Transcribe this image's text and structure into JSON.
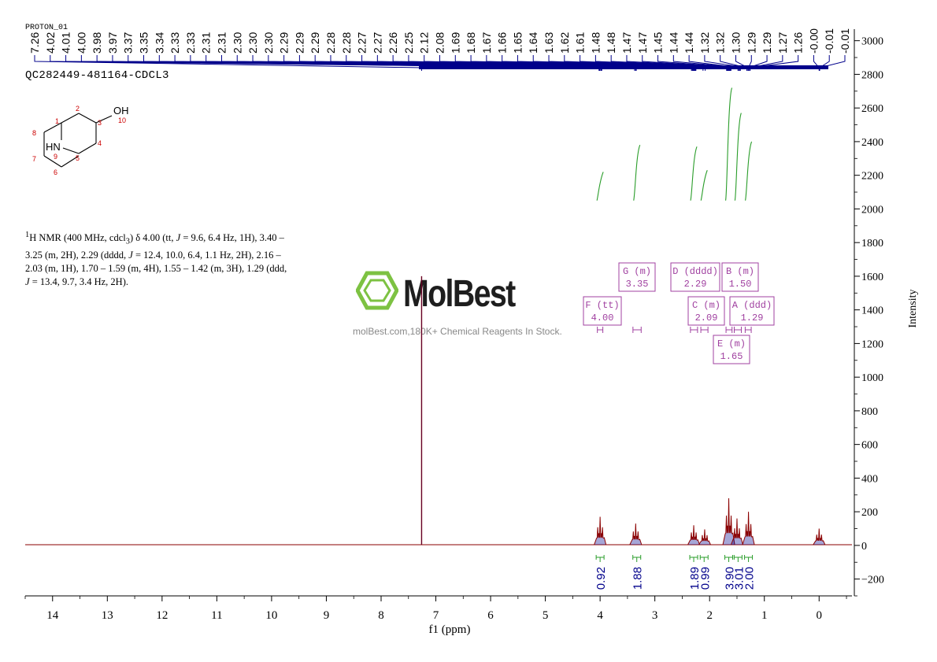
{
  "experiment_label": "PROTON_01",
  "dataset_name": "QC282449-481164-CDCL3",
  "nmr_description_html": "<sup>1</sup>H NMR (400 MHz, cdcl<sub>3</sub>) δ 4.00 (tt, <i>J</i> = 9.6, 6.4 Hz, 1H), 3.40 – 3.25 (m, 2H), 2.29 (dddd, <i>J</i> = 12.4, 10.0, 6.4, 1.1 Hz, 2H), 2.16 – 2.03 (m, 1H), 1.70 – 1.59 (m, 4H), 1.55 – 1.42 (m, 3H), 1.29 (ddd, <i>J</i> = 13.4, 9.7, 3.4 Hz, 2H).",
  "watermark": {
    "brand": "MolBest",
    "tagline": "molBest.com,180K+ Chemical Reagents In Stock.",
    "brand_color": "#7dc242"
  },
  "structure": {
    "atoms": [
      "1",
      "2",
      "3",
      "4",
      "5",
      "6",
      "7",
      "8",
      "9",
      "10",
      "OH",
      "HN"
    ]
  },
  "colors": {
    "spectrum": "#8b0000",
    "spectrum_blue": "#00008b",
    "integral": "#2a9d2a",
    "multiplet_box": "#a040a0",
    "peak_labels": "#00008b"
  },
  "chart_data": {
    "type": "line",
    "title": "",
    "xlabel": "f1 (ppm)",
    "ylabel": "Intensity",
    "xlim": [
      14.5,
      -0.6
    ],
    "ylim": [
      -300,
      3050
    ],
    "x_ticks": [
      14,
      13,
      12,
      11,
      10,
      9,
      8,
      7,
      6,
      5,
      4,
      3,
      2,
      1,
      0
    ],
    "y_ticks": [
      -200,
      0,
      200,
      400,
      600,
      800,
      1000,
      1200,
      1400,
      1600,
      1800,
      2000,
      2200,
      2400,
      2600,
      2800,
      3000
    ],
    "peak_labels": [
      "7.26",
      "4.02",
      "4.01",
      "4.00",
      "3.98",
      "3.97",
      "3.37",
      "3.35",
      "3.34",
      "2.33",
      "2.33",
      "2.31",
      "2.31",
      "2.30",
      "2.30",
      "2.30",
      "2.29",
      "2.29",
      "2.29",
      "2.28",
      "2.28",
      "2.27",
      "2.27",
      "2.26",
      "2.25",
      "2.12",
      "2.08",
      "1.69",
      "1.68",
      "1.67",
      "1.66",
      "1.65",
      "1.64",
      "1.63",
      "1.62",
      "1.61",
      "1.48",
      "1.48",
      "1.47",
      "1.47",
      "1.45",
      "1.44",
      "1.44",
      "1.32",
      "1.32",
      "1.30",
      "1.29",
      "1.29",
      "1.27",
      "1.26",
      "-0.00",
      "-0.01",
      "-0.01"
    ],
    "peaks": [
      {
        "ppm": 7.26,
        "height": 1600
      },
      {
        "ppm": 4.0,
        "height": 170
      },
      {
        "ppm": 3.35,
        "height": 130
      },
      {
        "ppm": 2.29,
        "height": 120
      },
      {
        "ppm": 2.09,
        "height": 95
      },
      {
        "ppm": 1.65,
        "height": 280
      },
      {
        "ppm": 1.5,
        "height": 160
      },
      {
        "ppm": 1.29,
        "height": 200
      },
      {
        "ppm": 0.0,
        "height": 100
      }
    ],
    "multiplets": [
      {
        "label": "G (m)",
        "value": "3.35",
        "ppm_from": 3.4,
        "ppm_to": 3.25
      },
      {
        "label": "D (dddd)",
        "value": "2.29",
        "ppm_from": 2.35,
        "ppm_to": 2.22
      },
      {
        "label": "B (m)",
        "value": "1.50",
        "ppm_from": 1.55,
        "ppm_to": 1.42
      },
      {
        "label": "F (tt)",
        "value": "4.00",
        "ppm_from": 4.05,
        "ppm_to": 3.95
      },
      {
        "label": "C (m)",
        "value": "2.09",
        "ppm_from": 2.16,
        "ppm_to": 2.03
      },
      {
        "label": "A (ddd)",
        "value": "1.29",
        "ppm_from": 1.35,
        "ppm_to": 1.24
      },
      {
        "label": "E (m)",
        "value": "1.65",
        "ppm_from": 1.7,
        "ppm_to": 1.59
      }
    ],
    "integrals": [
      {
        "value": "0.92",
        "ppm": 4.0
      },
      {
        "value": "1.88",
        "ppm": 3.33
      },
      {
        "value": "1.89",
        "ppm": 2.29
      },
      {
        "value": "0.99",
        "ppm": 2.1
      },
      {
        "value": "3.90",
        "ppm": 1.65
      },
      {
        "value": "3.01",
        "ppm": 1.48
      },
      {
        "value": "2.00",
        "ppm": 1.29
      }
    ],
    "grid": false,
    "legend": "none"
  }
}
